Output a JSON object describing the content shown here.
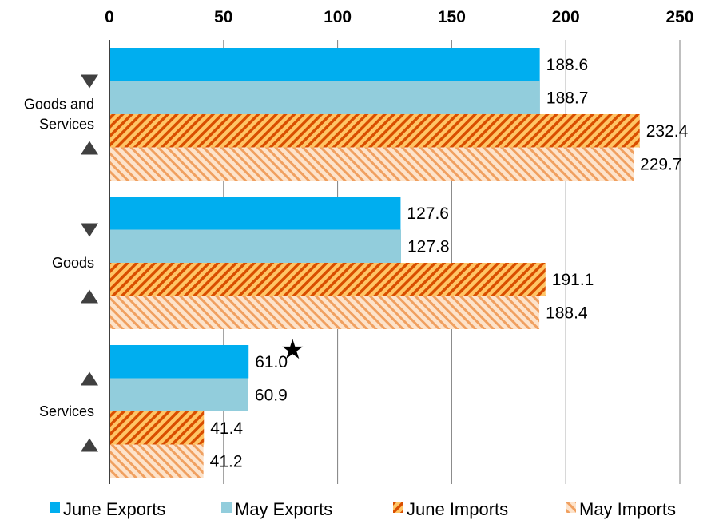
{
  "chart_data": {
    "type": "bar",
    "orientation": "horizontal",
    "title": "",
    "xlabel": "",
    "ylabel": "",
    "xlim": [
      0,
      250
    ],
    "x_ticks": [
      "0",
      "50",
      "100",
      "150",
      "200",
      "250"
    ],
    "x_tick_values": [
      0,
      50,
      100,
      150,
      200,
      250
    ],
    "grid": true,
    "legend_position": "bottom",
    "categories": [
      {
        "label_lines": [
          "Goods and",
          "Services"
        ],
        "markers": [
          "down",
          "up"
        ]
      },
      {
        "label_lines": [
          "Goods"
        ],
        "markers": [
          "down",
          "up"
        ]
      },
      {
        "label_lines": [
          "Services"
        ],
        "markers": [
          "up",
          "up"
        ]
      }
    ],
    "series": [
      {
        "name": "June Exports",
        "color": "#00AEEF",
        "pattern": "solid",
        "values": [
          188.6,
          127.6,
          61.0
        ],
        "labels": [
          "188.6",
          "127.6",
          "61.0"
        ]
      },
      {
        "name": "May Exports",
        "color": "#92CDDC",
        "pattern": "solid",
        "values": [
          188.7,
          127.8,
          60.9
        ],
        "labels": [
          "188.7",
          "127.8",
          "60.9"
        ]
      },
      {
        "name": "June Imports",
        "color": "#E36C09",
        "pattern": "dense-diagonal",
        "values": [
          232.4,
          191.1,
          41.4
        ],
        "labels": [
          "232.4",
          "191.1",
          "41.4"
        ]
      },
      {
        "name": "May Imports",
        "color": "#F79646",
        "pattern": "light-diagonal",
        "values": [
          229.7,
          188.4,
          41.2
        ],
        "labels": [
          "229.7",
          "188.4",
          "41.2"
        ]
      }
    ],
    "annotations": [
      {
        "type": "star",
        "category": 2,
        "series": 0,
        "text": "★"
      }
    ],
    "marker_color": "#404040"
  }
}
